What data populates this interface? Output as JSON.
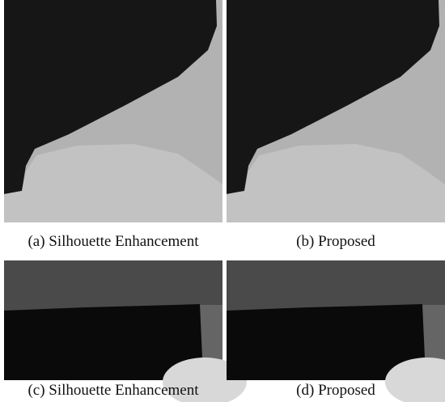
{
  "captions": [
    "(a) Silhouette Enhancement",
    "(b) Proposed",
    "(c) Silhouette Enhancement",
    "(d) Proposed"
  ]
}
